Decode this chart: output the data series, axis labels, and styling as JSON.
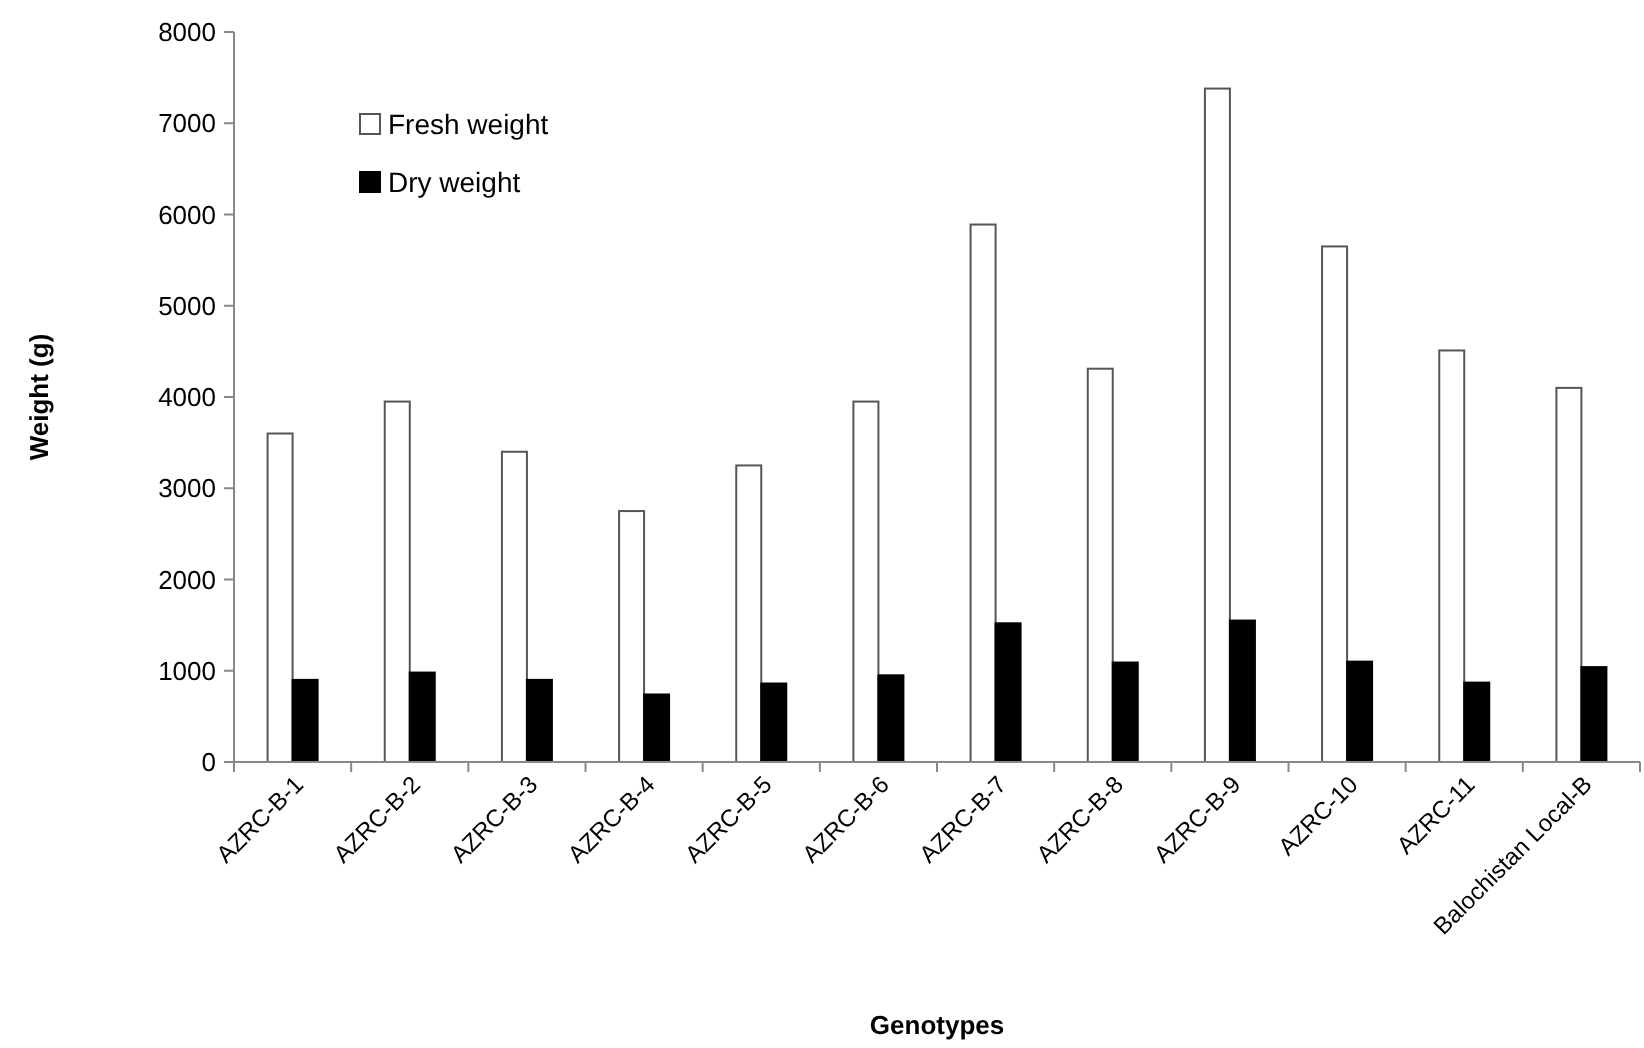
{
  "chart_data": {
    "type": "bar",
    "xlabel": "Genotypes",
    "ylabel": "Weight (g)",
    "categories": [
      "AZRC-B-1",
      "AZRC-B-2",
      "AZRC-B-3",
      "AZRC-B-4",
      "AZRC-B-5",
      "AZRC-B-6",
      "AZRC-B-7",
      "AZRC-B-8",
      "AZRC-B-9",
      "AZRC-10",
      "AZRC-11",
      "Balochistan Local-B"
    ],
    "series": [
      {
        "name": "Fresh weight",
        "color": "#ffffff",
        "values": [
          3600,
          3950,
          3400,
          2750,
          3250,
          3950,
          5890,
          4310,
          7380,
          5650,
          4510,
          4100
        ]
      },
      {
        "name": "Dry weight",
        "color": "#000000",
        "values": [
          900,
          980,
          900,
          740,
          860,
          950,
          1520,
          1090,
          1550,
          1100,
          870,
          1040
        ]
      }
    ],
    "ylim": [
      0,
      8000
    ],
    "yticks": [
      0,
      1000,
      2000,
      3000,
      4000,
      5000,
      6000,
      7000,
      8000
    ],
    "grid": false,
    "legend": "top left"
  }
}
